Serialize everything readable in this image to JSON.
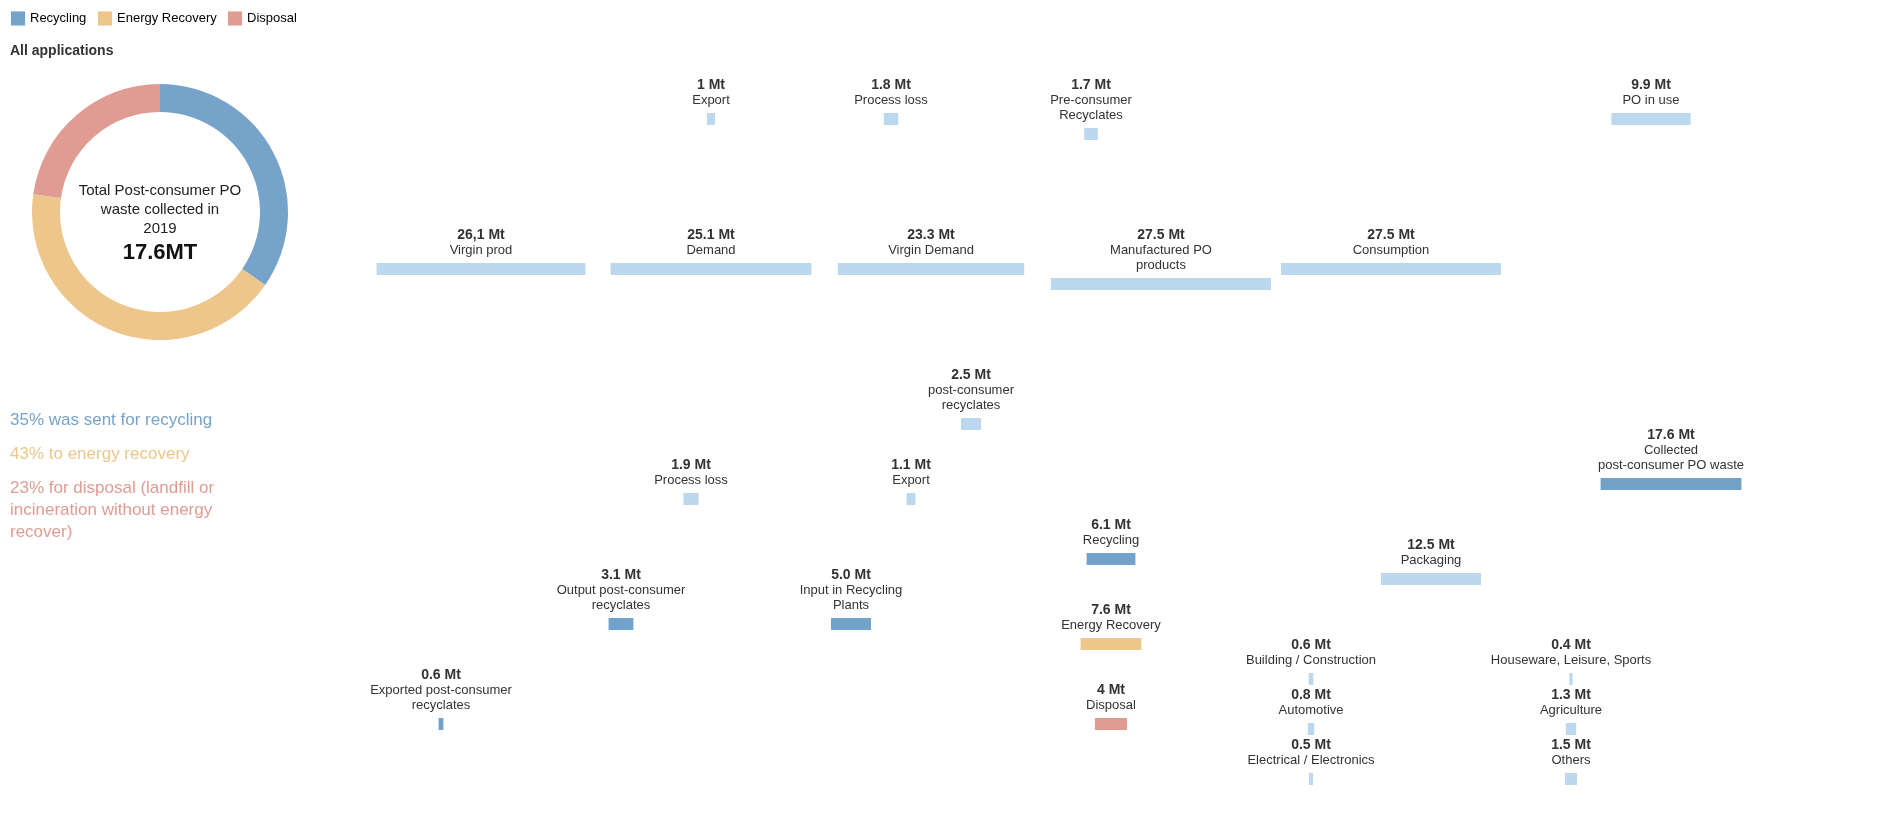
{
  "chart_data": [
    {
      "type": "donut",
      "title": "All applications",
      "categories": [
        "Recycling",
        "Energy Recovery",
        "Disposal"
      ],
      "values": [
        35,
        43,
        23
      ],
      "colors": [
        "#75a3c9",
        "#ecc68a",
        "#e09c93"
      ],
      "legend": "top",
      "annotations": [
        "Total Post-consumer PO waste collected in 2019",
        "17.6MT",
        "35% was sent for recycling",
        "43% to energy recovery",
        "23% for disposal (landfill or incineration without energy recover)"
      ]
    },
    {
      "type": "other",
      "categories": [
        "Virgin prod",
        "Demand",
        "Virgin Demand",
        "Manufactured PO products",
        "Consumption",
        "Export",
        "Process loss",
        "Pre-consumer Recyclates",
        "PO in use",
        "post-consumer recyclates",
        "Collected post-consumer PO waste",
        "Packaging",
        "Building / Construction",
        "Automotive",
        "Electrical / Electronics",
        "Houseware, Leisure, Sports",
        "Agriculture",
        "Others",
        "Recycling",
        "Energy Recovery",
        "Disposal",
        "Process loss",
        "Export",
        "Input in Recycling Plants",
        "Output post-consumer recyclates",
        "Exported post-consumer recyclates"
      ],
      "values": [
        26.1,
        25.1,
        23.3,
        27.5,
        27.5,
        1,
        1.8,
        1.7,
        9.9,
        2.5,
        17.6,
        12.5,
        0.6,
        0.8,
        0.5,
        0.4,
        1.3,
        1.5,
        6.1,
        7.6,
        4,
        1.9,
        1.1,
        5.0,
        3.1,
        0.6
      ],
      "value_labels": [
        "26,1 Mt",
        "25.1 Mt",
        "23.3 Mt",
        "27.5 Mt",
        "27.5 Mt",
        "1 Mt",
        "1.8 Mt",
        "1.7 Mt",
        "9.9 Mt",
        "2.5 Mt",
        "17.6 Mt",
        "12.5 Mt",
        "0.6 Mt",
        "0.8 Mt",
        "0.5 Mt",
        "0.4 Mt",
        "1.3 Mt",
        "1.5 Mt",
        "6.1 Mt",
        "7.6 Mt",
        "4 Mt",
        "1.9 Mt",
        "1.1 Mt",
        "5.0 Mt",
        "3.1 Mt",
        "0.6 Mt"
      ],
      "colors": [
        "#bcd8ee",
        "#bcd8ee",
        "#bcd8ee",
        "#bcd8ee",
        "#bcd8ee",
        "#bcd8ee",
        "#bcd8ee",
        "#bcd8ee",
        "#bcd8ee",
        "#bcd8ee",
        "#73a2c8",
        "#bcd8ee",
        "#bcd8ee",
        "#bcd8ee",
        "#bcd8ee",
        "#bcd8ee",
        "#bcd8ee",
        "#bcd8ee",
        "#73a2c8",
        "#ecc68a",
        "#e09c93",
        "#bcd8ee",
        "#bcd8ee",
        "#73a2c8",
        "#73a2c8",
        "#73a2c8"
      ]
    }
  ]
}
